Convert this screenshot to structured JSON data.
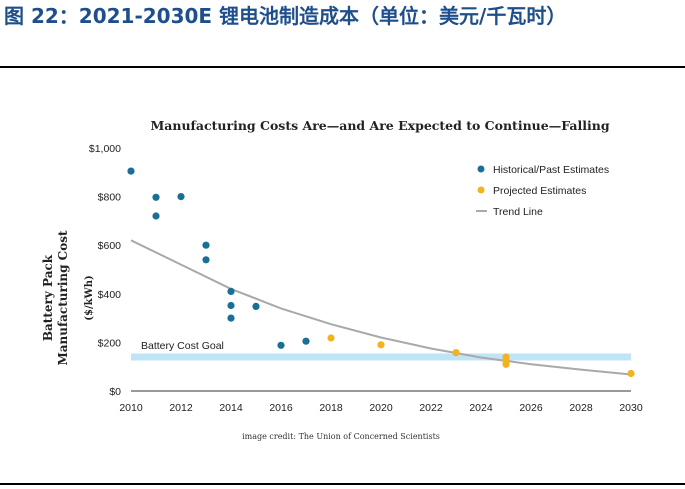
{
  "figure": {
    "title": "图 22：2021-2030E 锂电池制造成本（单位：美元/千瓦时）"
  },
  "chart_data": {
    "type": "scatter",
    "title": "Manufacturing Costs Are—and Are Expected to Continue—Falling",
    "ylabel": "Battery Pack Manufacturing Cost",
    "ylabel_unit": "($/kWh)",
    "xlabel": "",
    "xlim": [
      2010,
      2030
    ],
    "ylim": [
      0,
      1000
    ],
    "x_ticks": [
      "2010",
      "2012",
      "2014",
      "2016",
      "2018",
      "2020",
      "2022",
      "2024",
      "2026",
      "2028",
      "2030"
    ],
    "y_ticks": [
      "$0",
      "$200",
      "$400",
      "$600",
      "$800",
      "$1,000"
    ],
    "grid": false,
    "legend_position": "top-right",
    "series": [
      {
        "name": "Historical/Past Estimates",
        "color": "#1a6f96",
        "points": [
          [
            2010,
            905
          ],
          [
            2011,
            797
          ],
          [
            2011,
            720
          ],
          [
            2012,
            800
          ],
          [
            2013,
            600
          ],
          [
            2013,
            540
          ],
          [
            2014,
            410
          ],
          [
            2014,
            352
          ],
          [
            2014,
            300
          ],
          [
            2015,
            348
          ],
          [
            2016,
            188
          ],
          [
            2017,
            205
          ]
        ]
      },
      {
        "name": "Projected Estimates",
        "color": "#f2b31d",
        "points": [
          [
            2018,
            218
          ],
          [
            2020,
            190
          ],
          [
            2023,
            158
          ],
          [
            2025,
            140
          ],
          [
            2025,
            125
          ],
          [
            2025,
            110
          ],
          [
            2030,
            72
          ]
        ]
      },
      {
        "name": "Trend Line",
        "color": "#a9a9a9",
        "points": [
          [
            2010,
            620
          ],
          [
            2012,
            520
          ],
          [
            2014,
            420
          ],
          [
            2016,
            340
          ],
          [
            2018,
            275
          ],
          [
            2020,
            220
          ],
          [
            2022,
            175
          ],
          [
            2024,
            138
          ],
          [
            2026,
            110
          ],
          [
            2028,
            88
          ],
          [
            2030,
            68
          ]
        ]
      }
    ],
    "goal": {
      "label": "Battery Cost Goal",
      "value": 140,
      "color": "#bfe4f6"
    },
    "credit": "image credit: The Union of Concerned Scientists"
  }
}
